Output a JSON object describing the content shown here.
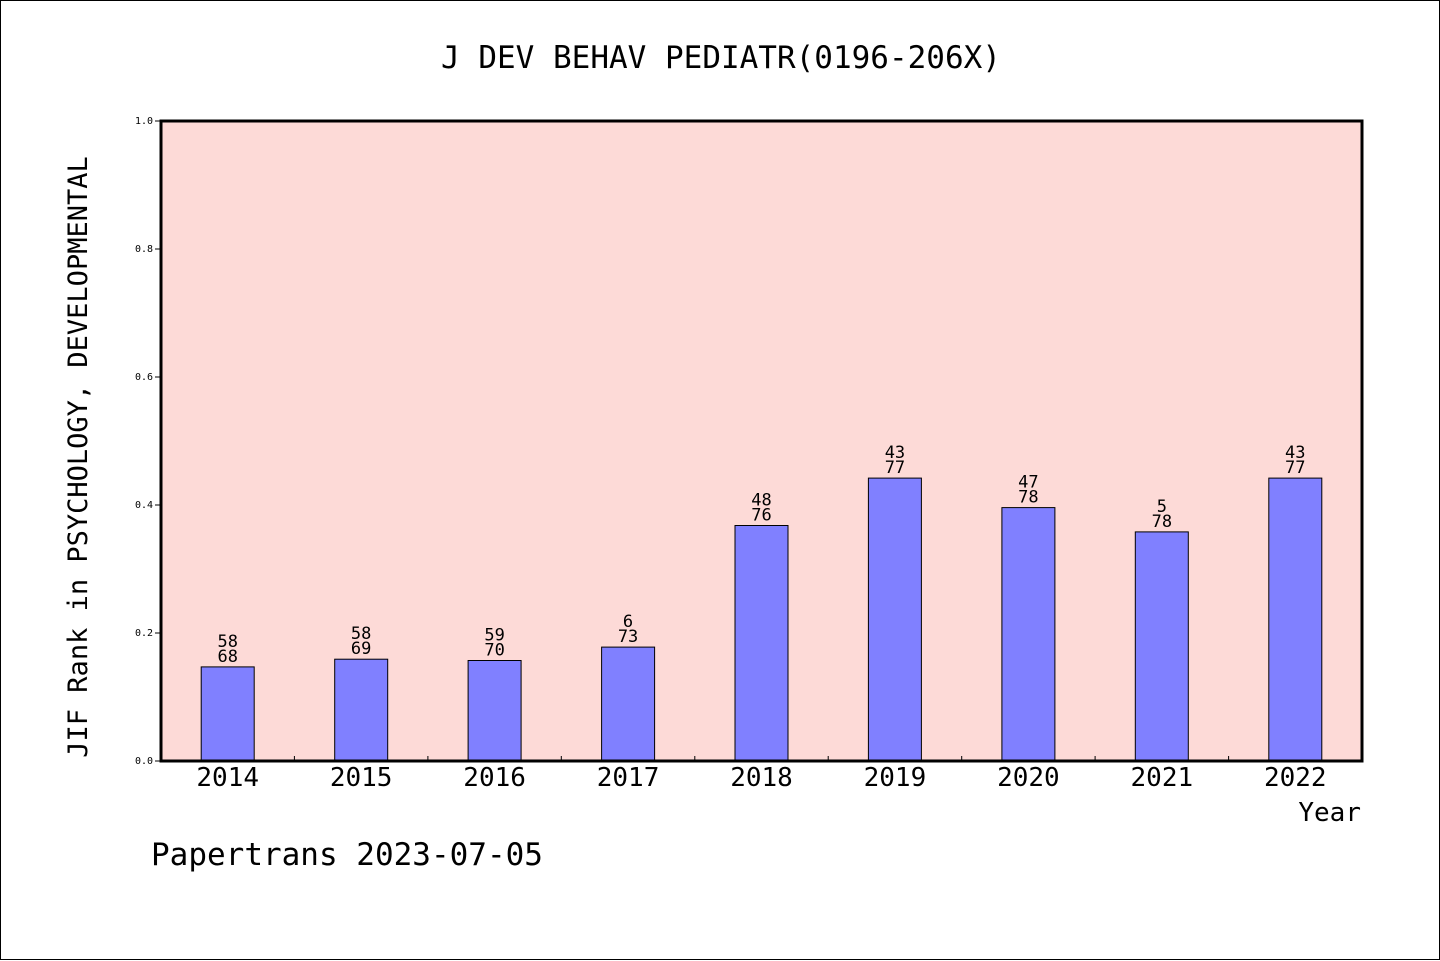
{
  "footer": "Papertrans 2023-07-05",
  "colors": {
    "plot_bg": "#fddad7",
    "bar_fill": "#8080ff",
    "axis": "#000000"
  },
  "chart_data": {
    "type": "bar",
    "title": "J DEV BEHAV PEDIATR(0196-206X)",
    "xlabel": "Year",
    "ylabel": "JIF Rank in PSYCHOLOGY, DEVELOPMENTAL",
    "ylim": [
      0,
      1.0
    ],
    "yticks": [
      "0.0",
      "0.2",
      "0.4",
      "0.6",
      "0.8",
      "1.0"
    ],
    "grid": false,
    "categories": [
      "2014",
      "2015",
      "2016",
      "2017",
      "2018",
      "2019",
      "2020",
      "2021",
      "2022"
    ],
    "values": [
      0.147,
      0.159,
      0.157,
      0.178,
      0.368,
      0.442,
      0.396,
      0.358,
      0.442
    ],
    "rank_labels": [
      [
        "58",
        "68"
      ],
      [
        "58",
        "69"
      ],
      [
        "59",
        "70"
      ],
      [
        "6",
        "73"
      ],
      [
        "48",
        "76"
      ],
      [
        "43",
        "77"
      ],
      [
        "47",
        "78"
      ],
      [
        "5",
        "78"
      ],
      [
        "43",
        "77"
      ]
    ]
  }
}
